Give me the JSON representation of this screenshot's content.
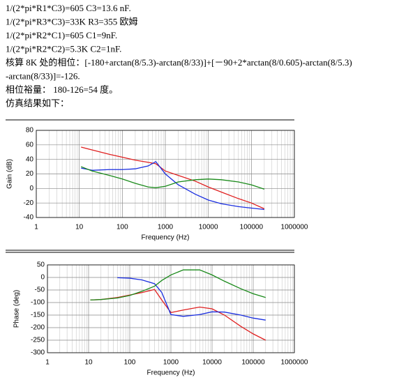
{
  "lines": [
    "1/(2*pi*R1*C3)=605        C3=13.6 nF.",
    "1/(2*pi*R3*C3)=33K       R3=355 欧姆",
    "1/(2*pi*R2*C1)=605          C1=9nF.",
    "1/(2*pi*R2*C2)=5.3K        C2=1nF.",
    "核算 8K 处的相位：[-180+arctan(8/5.3)-arctan(8/33)]+[－90+2*arctan(8/0.605)-arctan(8/5.3)",
    "-arctan(8/33)]=-126.",
    "相位裕量：  180-126=54 度。",
    "仿真结果如下："
  ],
  "chart_data": [
    {
      "type": "line",
      "xlabel": "Frequency (Hz)",
      "ylabel": "Gain (dB)",
      "log_x": true,
      "grid": true,
      "xlim": [
        1,
        1000000
      ],
      "xticks": [
        1,
        10,
        100,
        1000,
        10000,
        100000,
        1000000
      ],
      "ylim": [
        -40,
        80
      ],
      "yticks": [
        -40,
        -20,
        0,
        20,
        40,
        60,
        80
      ],
      "x": [
        11,
        20,
        50,
        100,
        200,
        400,
        600,
        1000,
        2000,
        5000,
        10000,
        20000,
        50000,
        100000,
        200000
      ],
      "series": [
        {
          "color": "#e02020",
          "values": [
            57,
            53,
            47,
            43,
            39,
            36,
            34,
            24,
            18,
            10,
            2,
            -5,
            -14,
            -20,
            -28
          ]
        },
        {
          "color": "#1a2ee0",
          "values": [
            28,
            25,
            26,
            26,
            27,
            31,
            37,
            20,
            5,
            -8,
            -16,
            -21,
            -25,
            -27,
            -29
          ]
        },
        {
          "color": "#1a8a1a",
          "values": [
            30,
            24,
            18,
            13,
            7,
            2,
            1,
            3,
            9,
            12,
            13,
            12,
            9,
            5,
            -1
          ]
        }
      ]
    },
    {
      "type": "line",
      "xlabel": "Frequency (Hz)",
      "ylabel": "Phase (deg)",
      "log_x": true,
      "grid": true,
      "xlim": [
        1,
        1000000
      ],
      "xticks": [
        1,
        10,
        100,
        1000,
        10000,
        100000,
        1000000
      ],
      "ylim": [
        -300,
        50
      ],
      "yticks": [
        -300,
        -250,
        -200,
        -150,
        -100,
        -50,
        0,
        50
      ],
      "x": [
        11,
        20,
        50,
        100,
        200,
        400,
        600,
        1000,
        2000,
        5000,
        10000,
        20000,
        50000,
        100000,
        200000
      ],
      "series": [
        {
          "color": "#e02020",
          "values": [
            -90,
            -88,
            -80,
            -70,
            -60,
            -48,
            -90,
            -140,
            -130,
            -118,
            -125,
            -150,
            -195,
            -225,
            -250
          ]
        },
        {
          "color": "#1a2ee0",
          "values": [
            null,
            null,
            -1,
            -3,
            -10,
            -25,
            -60,
            -148,
            -155,
            -148,
            -137,
            -138,
            -150,
            -162,
            -170
          ]
        },
        {
          "color": "#1a8a1a",
          "values": [
            -90,
            -88,
            -82,
            -72,
            -55,
            -35,
            -12,
            10,
            30,
            30,
            10,
            -15,
            -45,
            -65,
            -80
          ]
        }
      ]
    }
  ]
}
